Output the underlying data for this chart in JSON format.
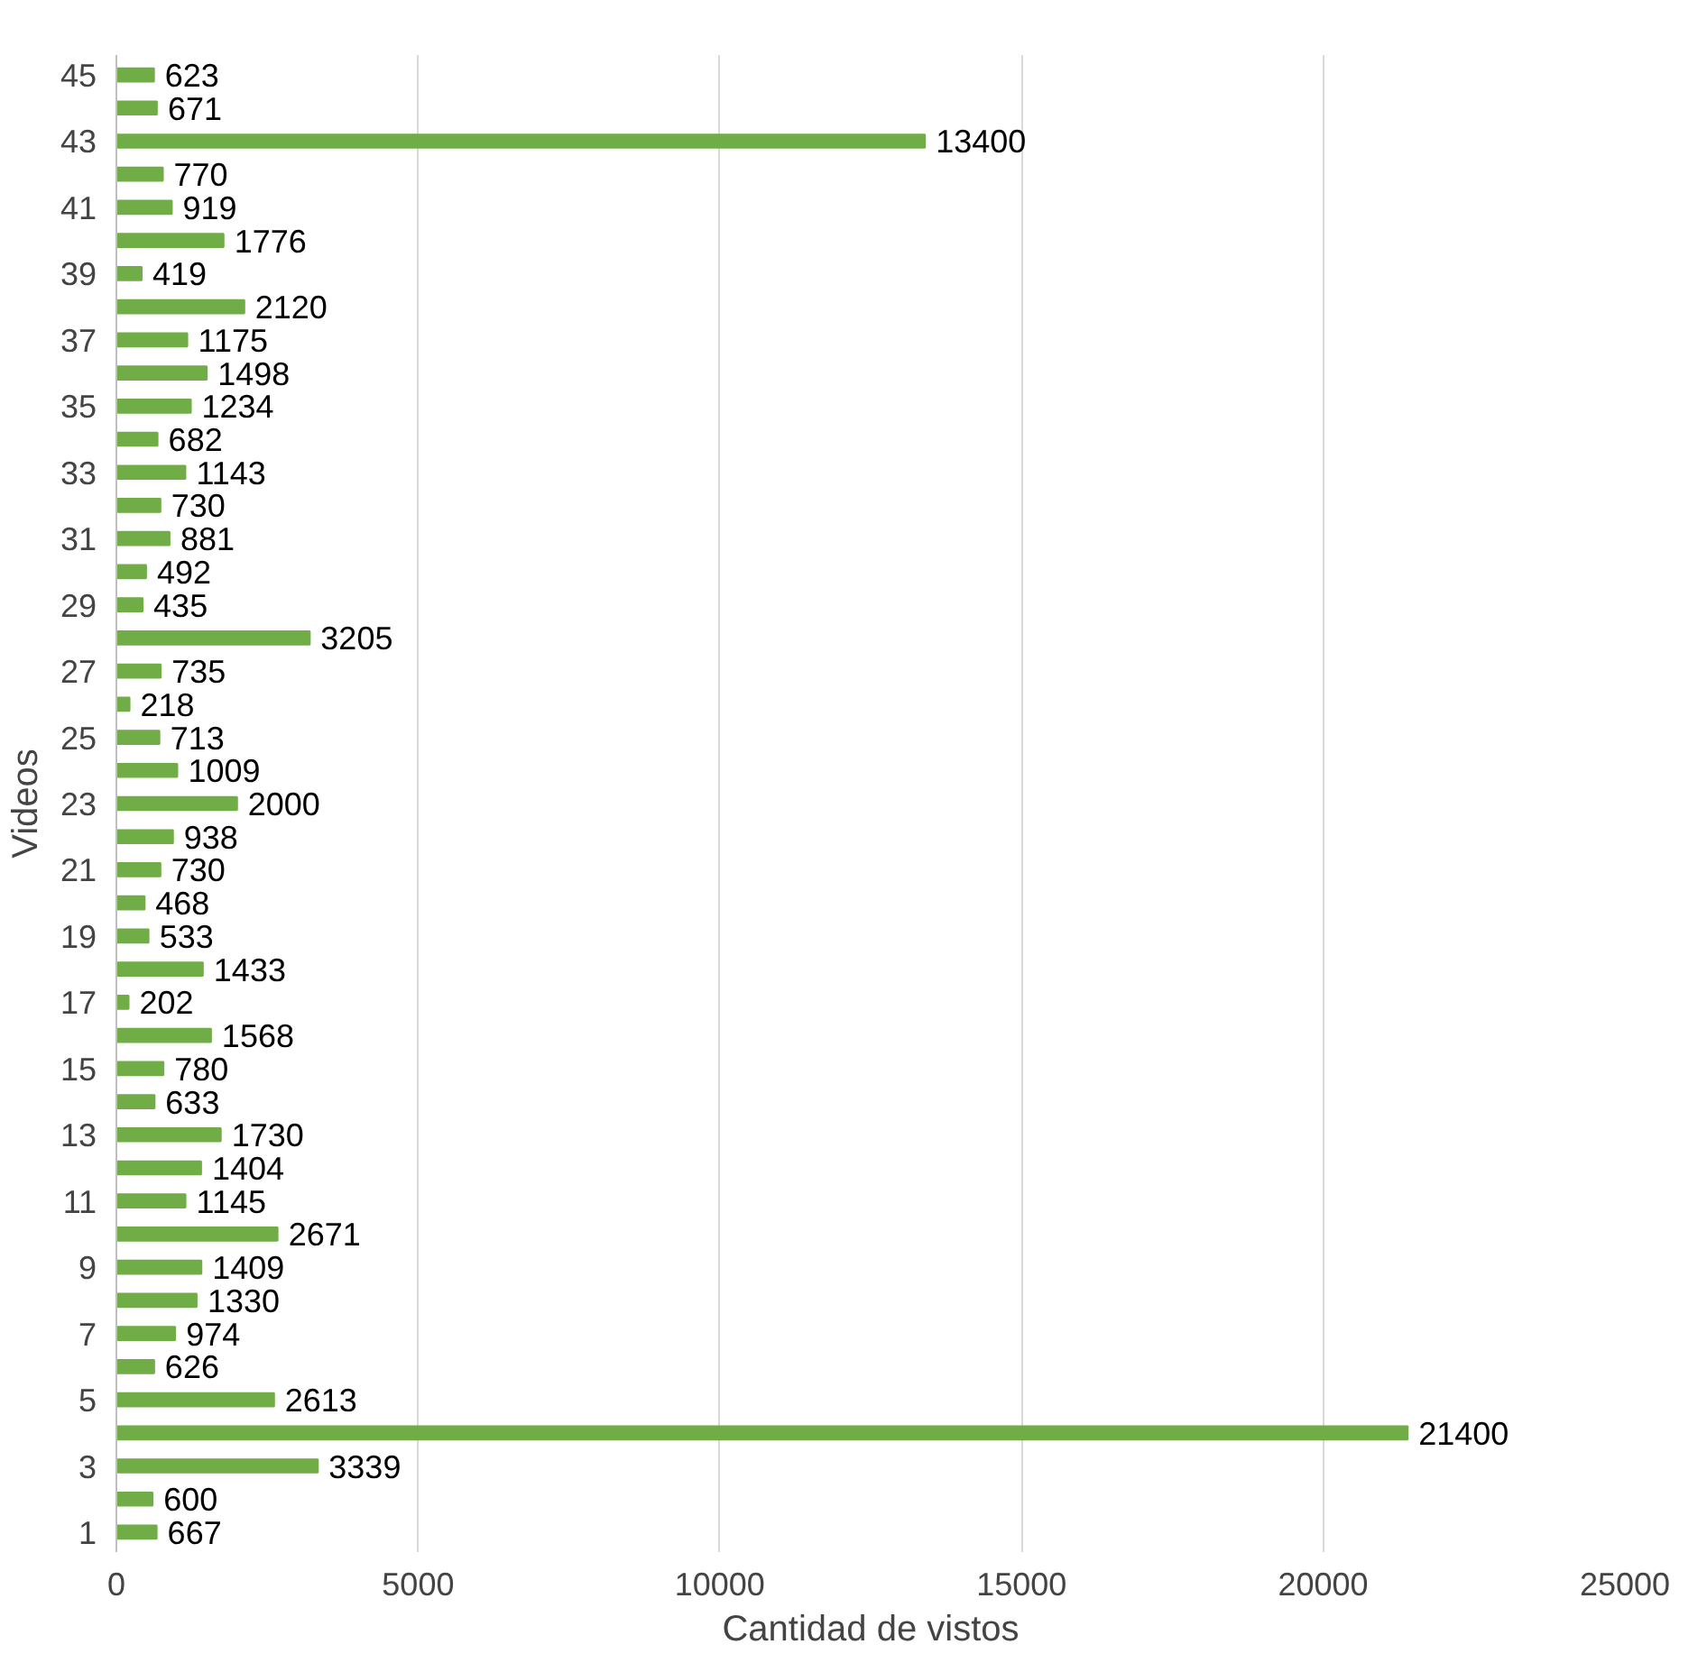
{
  "chart_data": {
    "type": "bar",
    "orientation": "horizontal",
    "xlabel": "Cantidad de vistos",
    "ylabel": "Videos",
    "categories": [
      "45",
      null,
      "43",
      null,
      "41",
      null,
      "39",
      null,
      "37",
      null,
      "35",
      null,
      "33",
      null,
      "31",
      null,
      "29",
      null,
      "27",
      null,
      "25",
      null,
      "23",
      null,
      "21",
      null,
      "19",
      null,
      "17",
      null,
      "15",
      null,
      "13",
      null,
      "11",
      null,
      "9",
      null,
      "7",
      null,
      "5",
      null,
      "3",
      null,
      "1"
    ],
    "values": [
      623,
      671,
      13400,
      770,
      919,
      1776,
      419,
      2120,
      1175,
      1498,
      1234,
      682,
      1143,
      730,
      881,
      492,
      435,
      3205,
      735,
      218,
      713,
      1009,
      2000,
      938,
      730,
      468,
      533,
      1433,
      202,
      1568,
      780,
      633,
      1730,
      1404,
      1145,
      2671,
      1409,
      1330,
      974,
      626,
      2613,
      21400,
      3339,
      600,
      667
    ],
    "color": "#70ad47",
    "xlim": [
      0,
      25000
    ],
    "xticks": [
      0,
      5000,
      10000,
      15000,
      20000,
      25000
    ],
    "grid": "x",
    "data_labels": true
  }
}
